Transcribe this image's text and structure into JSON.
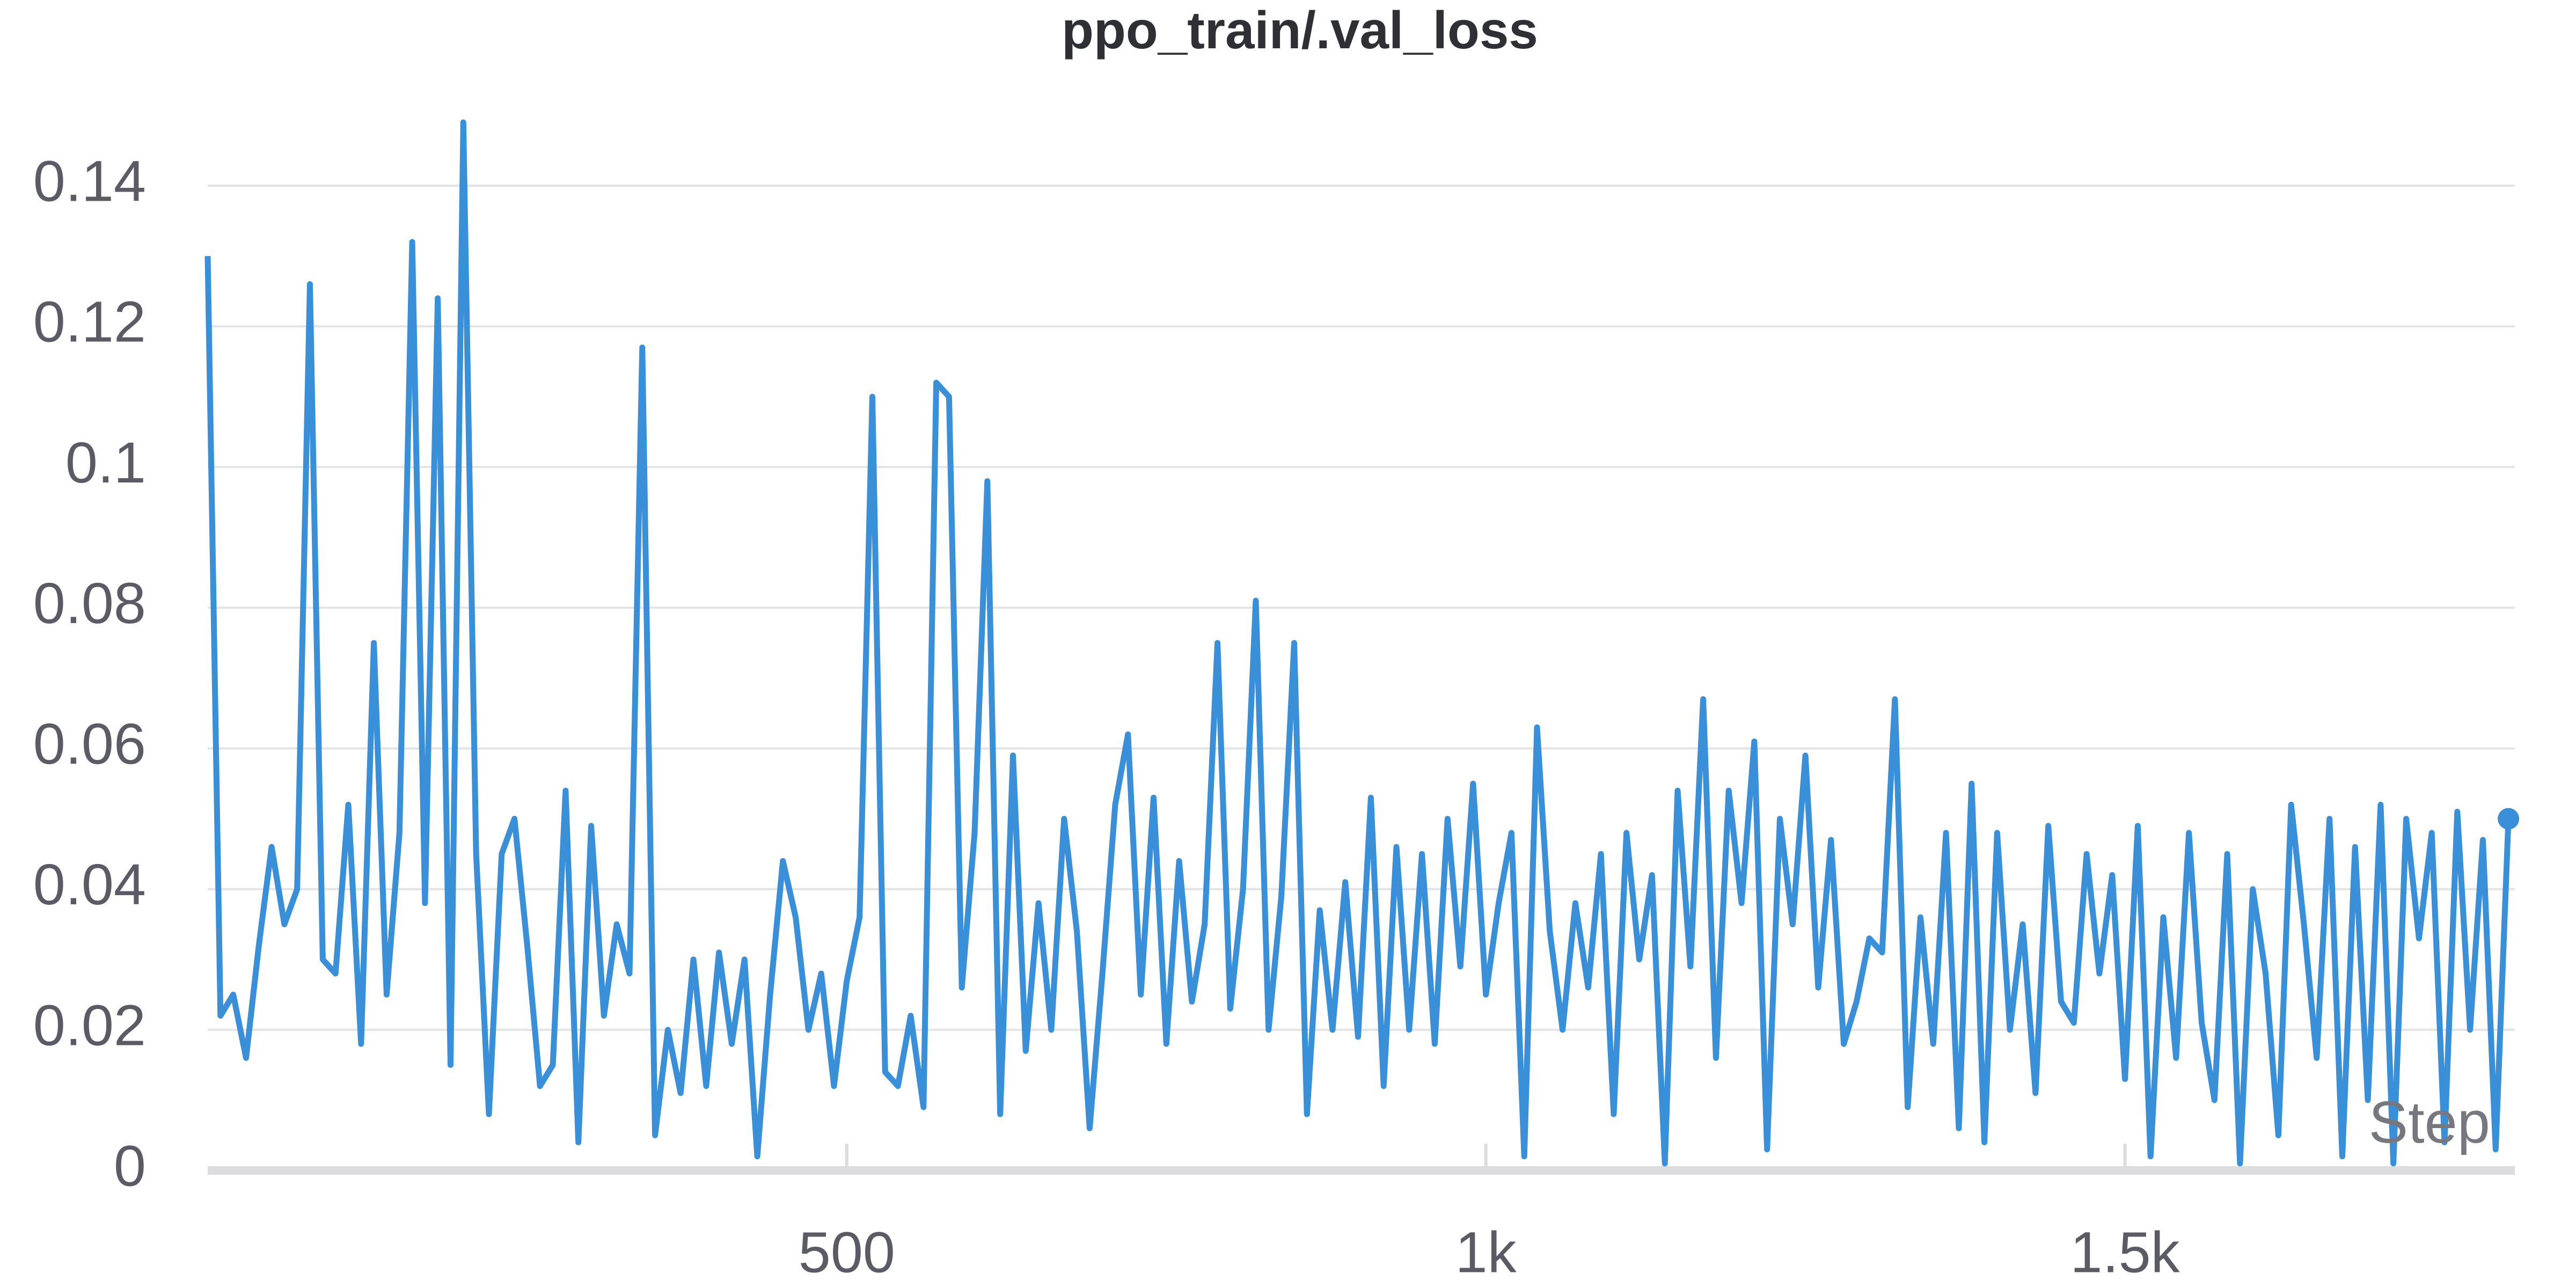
{
  "chart_data": {
    "type": "line",
    "title": "ppo_train/.val_loss",
    "x_label": "Step",
    "x": [
      0,
      10,
      20,
      30,
      40,
      50,
      60,
      70,
      80,
      90,
      100,
      110,
      120,
      130,
      140,
      150,
      160,
      170,
      180,
      190,
      200,
      210,
      220,
      230,
      240,
      250,
      260,
      270,
      280,
      290,
      300,
      310,
      320,
      330,
      340,
      350,
      360,
      370,
      380,
      390,
      400,
      410,
      420,
      430,
      440,
      450,
      460,
      470,
      480,
      490,
      500,
      510,
      520,
      530,
      540,
      550,
      560,
      570,
      580,
      590,
      600,
      610,
      620,
      630,
      640,
      650,
      660,
      670,
      680,
      690,
      700,
      710,
      720,
      730,
      740,
      750,
      760,
      770,
      780,
      790,
      800,
      810,
      820,
      830,
      840,
      850,
      860,
      870,
      880,
      890,
      900,
      910,
      920,
      930,
      940,
      950,
      960,
      970,
      980,
      990,
      1000,
      1010,
      1020,
      1030,
      1040,
      1050,
      1060,
      1070,
      1080,
      1090,
      1100,
      1110,
      1120,
      1130,
      1140,
      1150,
      1160,
      1170,
      1180,
      1190,
      1200,
      1210,
      1220,
      1230,
      1240,
      1250,
      1260,
      1270,
      1280,
      1290,
      1300,
      1310,
      1320,
      1330,
      1340,
      1350,
      1360,
      1370,
      1380,
      1390,
      1400,
      1410,
      1420,
      1430,
      1440,
      1450,
      1460,
      1470,
      1480,
      1490,
      1500,
      1510,
      1520,
      1530,
      1540,
      1550,
      1560,
      1570,
      1580,
      1590,
      1600,
      1610,
      1620,
      1630,
      1640,
      1650,
      1660,
      1670,
      1680,
      1690,
      1700,
      1710,
      1720,
      1730,
      1740,
      1750,
      1760,
      1770,
      1780,
      1790,
      1800
    ],
    "series": [
      {
        "name": "ppo_train/.val_loss",
        "color": "#3a8fd9",
        "values": [
          0.13,
          0.022,
          0.025,
          0.016,
          0.032,
          0.046,
          0.035,
          0.04,
          0.126,
          0.03,
          0.028,
          0.052,
          0.018,
          0.075,
          0.025,
          0.048,
          0.132,
          0.038,
          0.124,
          0.015,
          0.149,
          0.045,
          0.008,
          0.045,
          0.05,
          0.032,
          0.012,
          0.015,
          0.054,
          0.004,
          0.049,
          0.022,
          0.035,
          0.028,
          0.117,
          0.005,
          0.02,
          0.011,
          0.03,
          0.012,
          0.031,
          0.018,
          0.03,
          0.002,
          0.025,
          0.044,
          0.036,
          0.02,
          0.028,
          0.012,
          0.027,
          0.036,
          0.11,
          0.014,
          0.012,
          0.022,
          0.009,
          0.112,
          0.11,
          0.026,
          0.048,
          0.098,
          0.008,
          0.059,
          0.017,
          0.038,
          0.02,
          0.05,
          0.034,
          0.006,
          0.028,
          0.052,
          0.062,
          0.025,
          0.053,
          0.018,
          0.044,
          0.024,
          0.035,
          0.075,
          0.023,
          0.04,
          0.081,
          0.02,
          0.039,
          0.075,
          0.008,
          0.037,
          0.02,
          0.041,
          0.019,
          0.053,
          0.012,
          0.046,
          0.02,
          0.045,
          0.018,
          0.05,
          0.029,
          0.055,
          0.025,
          0.038,
          0.048,
          0.002,
          0.063,
          0.034,
          0.02,
          0.038,
          0.026,
          0.045,
          0.008,
          0.048,
          0.03,
          0.042,
          0.001,
          0.054,
          0.029,
          0.067,
          0.016,
          0.054,
          0.038,
          0.061,
          0.003,
          0.05,
          0.035,
          0.059,
          0.026,
          0.047,
          0.018,
          0.024,
          0.033,
          0.031,
          0.067,
          0.009,
          0.036,
          0.018,
          0.048,
          0.006,
          0.055,
          0.004,
          0.048,
          0.02,
          0.035,
          0.011,
          0.049,
          0.024,
          0.021,
          0.045,
          0.028,
          0.042,
          0.013,
          0.049,
          0.002,
          0.036,
          0.016,
          0.048,
          0.021,
          0.01,
          0.045,
          0.001,
          0.04,
          0.028,
          0.005,
          0.052,
          0.035,
          0.016,
          0.05,
          0.002,
          0.046,
          0.01,
          0.052,
          0.001,
          0.05,
          0.033,
          0.048,
          0.004,
          0.051,
          0.02,
          0.047,
          0.003,
          0.05
        ]
      }
    ],
    "xlim": [
      0,
      1805
    ],
    "ylim": [
      0,
      0.14
    ],
    "xticks": [
      500,
      {
        "value": 1000,
        "label": "1k"
      },
      {
        "value": 1500,
        "label": "1.5k"
      }
    ],
    "yticks": [
      0,
      0.02,
      0.04,
      0.06,
      0.08,
      0.1,
      0.12,
      0.14
    ],
    "grid": true
  }
}
